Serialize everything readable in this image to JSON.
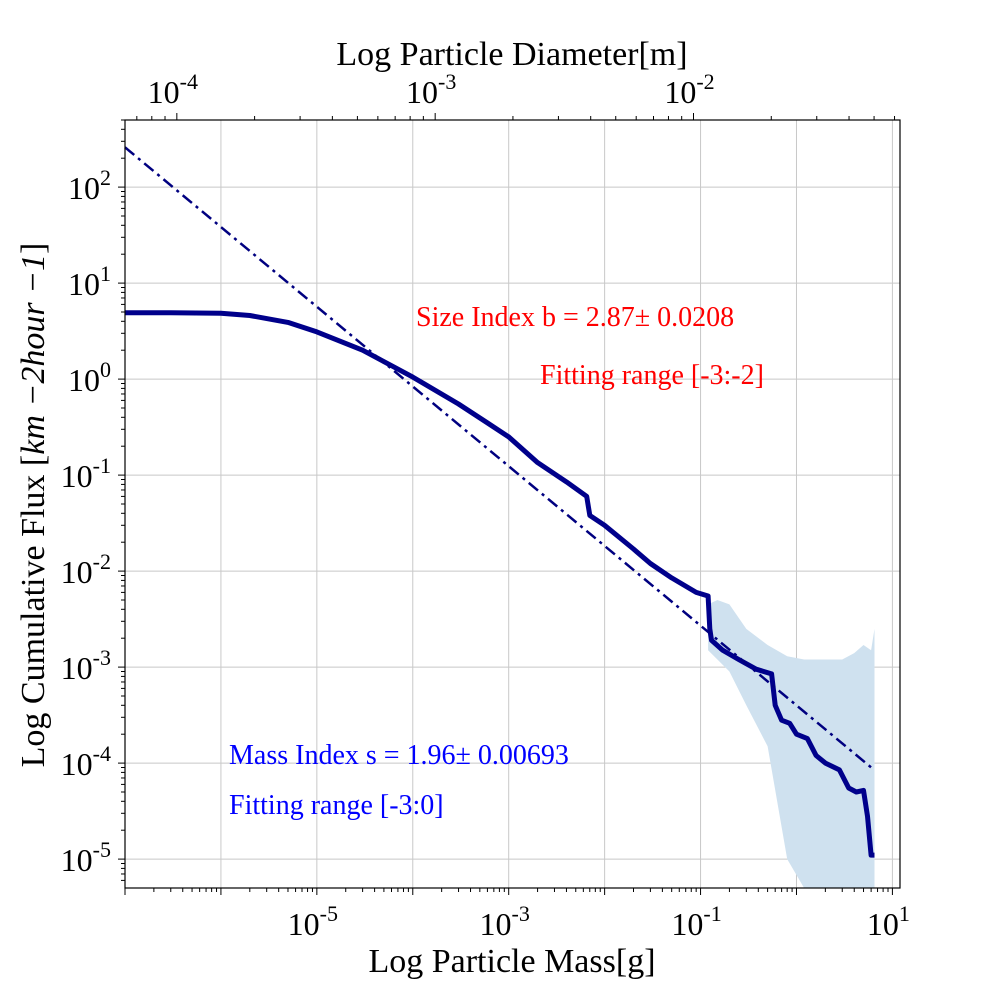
{
  "chart_data": {
    "type": "line",
    "title": "",
    "xlabel": "Log Particle Mass[g]",
    "x2label": "Log Particle Diameter[m]",
    "ylabel_prefix": "Log Cumulative Flux [",
    "ylabel_math": "km −2hour −1",
    "ylabel_suffix": "]",
    "xscale": "log",
    "yscale": "log",
    "xlim": [
      1e-07,
      12
    ],
    "ylim": [
      5e-06,
      500
    ],
    "x2lim": [
      6.3e-05,
      0.063
    ],
    "grid": true,
    "x_ticks": [
      {
        "base": "10",
        "exp": "-5",
        "value": 1e-05
      },
      {
        "base": "10",
        "exp": "-3",
        "value": 0.001
      },
      {
        "base": "10",
        "exp": "-1",
        "value": 0.1
      },
      {
        "base": "10",
        "exp": "1",
        "value": 10
      }
    ],
    "x2_ticks": [
      {
        "base": "10",
        "exp": "-4",
        "value": 0.0001
      },
      {
        "base": "10",
        "exp": "-3",
        "value": 0.001
      },
      {
        "base": "10",
        "exp": "-2",
        "value": 0.01
      }
    ],
    "y_ticks": [
      {
        "base": "10",
        "exp": "2",
        "value": 100
      },
      {
        "base": "10",
        "exp": "1",
        "value": 10
      },
      {
        "base": "10",
        "exp": "0",
        "value": 1
      },
      {
        "base": "10",
        "exp": "-1",
        "value": 0.1
      },
      {
        "base": "10",
        "exp": "-2",
        "value": 0.01
      },
      {
        "base": "10",
        "exp": "-3",
        "value": 0.001
      },
      {
        "base": "10",
        "exp": "-4",
        "value": 0.0001
      },
      {
        "base": "10",
        "exp": "-5",
        "value": 1e-05
      }
    ],
    "annotations": {
      "size_index": "Size Index b = 2.87± 0.0208",
      "size_range": "Fitting range [-3:-2]",
      "mass_index": "Mass Index s = 1.96± 0.00693",
      "mass_range": "Fitting range [-3:0]"
    },
    "colors": {
      "cumulative": "#00008b",
      "fit": "#000080",
      "band": "#cfe1ef",
      "size_text": "#ff0000",
      "mass_text": "#0000ff",
      "grid": "#c8c8c8"
    },
    "series": [
      {
        "style": "solid",
        "x": [
          1e-07,
          3e-07,
          1e-06,
          2e-06,
          5e-06,
          1e-05,
          3e-05,
          0.0001,
          0.0003,
          0.0006,
          0.001,
          0.002,
          0.004,
          0.0065,
          0.007,
          0.01,
          0.02,
          0.03,
          0.05,
          0.09,
          0.12,
          0.125,
          0.13,
          0.17,
          0.25,
          0.38,
          0.55,
          0.6,
          0.7,
          0.85,
          1.0,
          1.3,
          1.6,
          2.0,
          2.8,
          3.5,
          4.2,
          5.0,
          5.5,
          6.0,
          6.5
        ],
        "y": [
          4.9,
          4.9,
          4.85,
          4.6,
          3.9,
          3.1,
          2.0,
          1.05,
          0.55,
          0.35,
          0.25,
          0.135,
          0.085,
          0.06,
          0.038,
          0.03,
          0.017,
          0.012,
          0.0085,
          0.006,
          0.0055,
          0.0025,
          0.0019,
          0.0015,
          0.0012,
          0.00095,
          0.00085,
          0.0004,
          0.00028,
          0.00026,
          0.0002,
          0.00018,
          0.00012,
          0.0001,
          8.5e-05,
          5.5e-05,
          5e-05,
          5.2e-05,
          2.8e-05,
          1.1e-05,
          1.1e-05
        ]
      },
      {
        "style": "dashdot",
        "x": [
          1e-07,
          6.5
        ],
        "y": [
          260,
          8.43e-05
        ]
      }
    ],
    "uncertainty_band": {
      "x": [
        0.12,
        0.15,
        0.2,
        0.3,
        0.5,
        0.8,
        1.2,
        2,
        3,
        4,
        5,
        6,
        6.5
      ],
      "upper": [
        0.0045,
        0.005,
        0.0045,
        0.0025,
        0.0017,
        0.0013,
        0.0012,
        0.0012,
        0.0012,
        0.0014,
        0.0017,
        0.0015,
        0.0025
      ],
      "lower": [
        0.0015,
        0.0012,
        0.0009,
        0.0004,
        0.00015,
        1e-05,
        5e-06,
        5e-06,
        5e-06,
        5e-06,
        5e-06,
        5e-06,
        5e-06
      ]
    }
  }
}
